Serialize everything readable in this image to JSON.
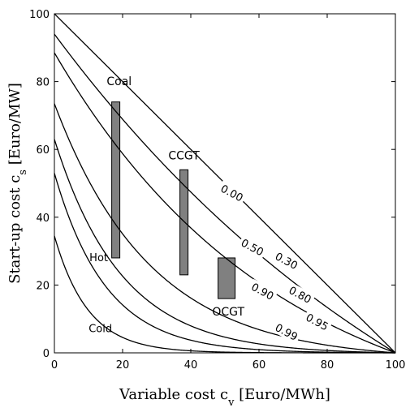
{
  "chart_data": {
    "type": "line",
    "xlabel": "Variable cost c",
    "xlabel_sub": "v",
    "xlabel_unit": " [Euro/MWh]",
    "ylabel": "Start-up cost c",
    "ylabel_sub": "s",
    "ylabel_unit": " [Euro/MW]",
    "xlim": [
      0,
      100
    ],
    "ylim": [
      0,
      100
    ],
    "xticks": [
      0,
      20,
      40,
      60,
      80,
      100
    ],
    "yticks": [
      0,
      20,
      40,
      60,
      80,
      100
    ],
    "grid": false,
    "series": [
      {
        "name": "0.00",
        "alpha": 0.0,
        "label_x": 52,
        "label_y": 47
      },
      {
        "name": "0.30",
        "alpha": 0.3,
        "label_x": 68,
        "label_y": 27
      },
      {
        "name": "0.50",
        "alpha": 0.5,
        "label_x": 58,
        "label_y": 31
      },
      {
        "name": "0.80",
        "alpha": 0.8,
        "label_x": 72,
        "label_y": 17
      },
      {
        "name": "0.90",
        "alpha": 0.9,
        "label_x": 61,
        "label_y": 18
      },
      {
        "name": "0.95",
        "alpha": 0.95,
        "label_x": 77,
        "label_y": 9
      },
      {
        "name": "0.99",
        "alpha": 0.99,
        "label_x": 68,
        "label_y": 6
      }
    ],
    "ranges": [
      {
        "name": "Coal",
        "x": 18,
        "y_low": 28,
        "y_high": 74,
        "label_x": 19,
        "label_y": 79
      },
      {
        "name": "CCGT",
        "x": 38,
        "y_low": 23,
        "y_high": 54,
        "label_x": 38,
        "label_y": 57
      },
      {
        "name": "OCGT",
        "x": 50.5,
        "y_low": 16,
        "y_high": 28,
        "label_x": 51,
        "label_y": 11
      }
    ],
    "annotations": [
      {
        "text": "Hot",
        "x": 13,
        "y": 28
      },
      {
        "text": "Cold",
        "x": 13.5,
        "y": 7
      }
    ],
    "colors": {
      "range_fill": "#808080",
      "line": "#000000"
    }
  }
}
